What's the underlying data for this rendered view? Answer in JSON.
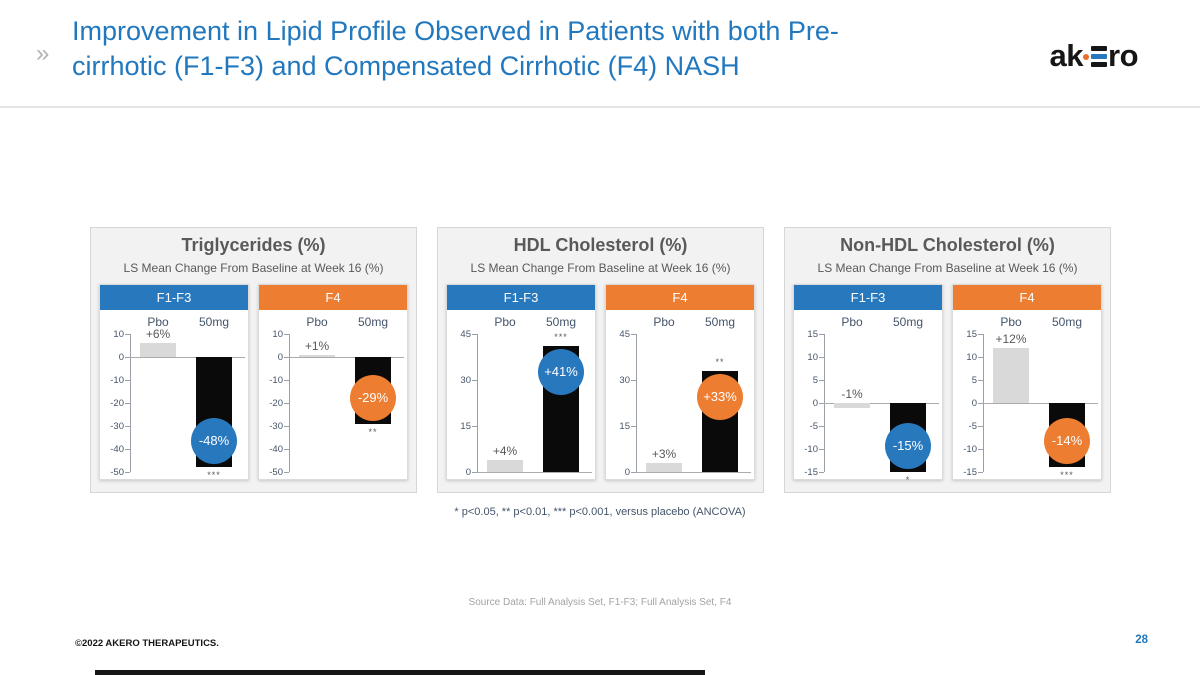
{
  "page": {
    "title_line1": "Improvement in Lipid Profile Observed in Patients with both Pre-",
    "title_line2": "cirrhotic (F1-F3) and Compensated Cirrhotic (F4) NASH",
    "chevron": "»",
    "logo_prefix": "ak",
    "logo_suffix": "ro",
    "footnote": "* p<0.05, ** p<0.01, *** p<0.001, versus placebo (ANCOVA)",
    "source": "Source Data: Full Analysis Set, F1-F3; Full Analysis Set, F4",
    "copyright": "©2022 AKERO THERAPEUTICS.",
    "page_number": "28"
  },
  "colors": {
    "title_blue": "#2178BE",
    "f1f3_blue": "#2878BE",
    "f4_orange": "#ED7D31",
    "bar_black": "#0A0A0A",
    "bar_gray": "#D9D9D9",
    "label_slate": "#44546A",
    "panel_text": "#595959"
  },
  "chart_data": [
    {
      "type": "bar",
      "title": "Triglycerides (%)",
      "subtitle": "LS Mean Change From Baseline at Week 16 (%)",
      "categories": [
        "Pbo",
        "50mg"
      ],
      "ylim": [
        -50,
        10
      ],
      "yticks": [
        10,
        0,
        -10,
        -20,
        -30,
        -40,
        -50
      ],
      "groups": [
        {
          "label": "F1-F3",
          "accent": "#2878BE",
          "values": [
            6,
            -48
          ],
          "pbo_label": "+6%",
          "dose_label": "-48%",
          "significance": "***"
        },
        {
          "label": "F4",
          "accent": "#ED7D31",
          "values": [
            1,
            -29
          ],
          "pbo_label": "+1%",
          "dose_label": "-29%",
          "significance": "**"
        }
      ]
    },
    {
      "type": "bar",
      "title": "HDL Cholesterol (%)",
      "subtitle": "LS Mean Change From Baseline at Week 16 (%)",
      "categories": [
        "Pbo",
        "50mg"
      ],
      "ylim": [
        0,
        45
      ],
      "yticks": [
        45,
        30,
        15,
        0
      ],
      "groups": [
        {
          "label": "F1-F3",
          "accent": "#2878BE",
          "values": [
            4,
            41
          ],
          "pbo_label": "+4%",
          "dose_label": "+41%",
          "significance": "***"
        },
        {
          "label": "F4",
          "accent": "#ED7D31",
          "values": [
            3,
            33
          ],
          "pbo_label": "+3%",
          "dose_label": "+33%",
          "significance": "**"
        }
      ]
    },
    {
      "type": "bar",
      "title": "Non-HDL Cholesterol (%)",
      "subtitle": "LS Mean Change From Baseline at Week 16 (%)",
      "categories": [
        "Pbo",
        "50mg"
      ],
      "ylim": [
        -15,
        15
      ],
      "yticks": [
        15,
        10,
        5,
        0,
        -5,
        -10,
        -15
      ],
      "groups": [
        {
          "label": "F1-F3",
          "accent": "#2878BE",
          "values": [
            -1,
            -15
          ],
          "pbo_label": "-1%",
          "dose_label": "-15%",
          "significance": "*"
        },
        {
          "label": "F4",
          "accent": "#ED7D31",
          "values": [
            12,
            -14
          ],
          "pbo_label": "+12%",
          "dose_label": "-14%",
          "significance": "***"
        }
      ]
    }
  ]
}
